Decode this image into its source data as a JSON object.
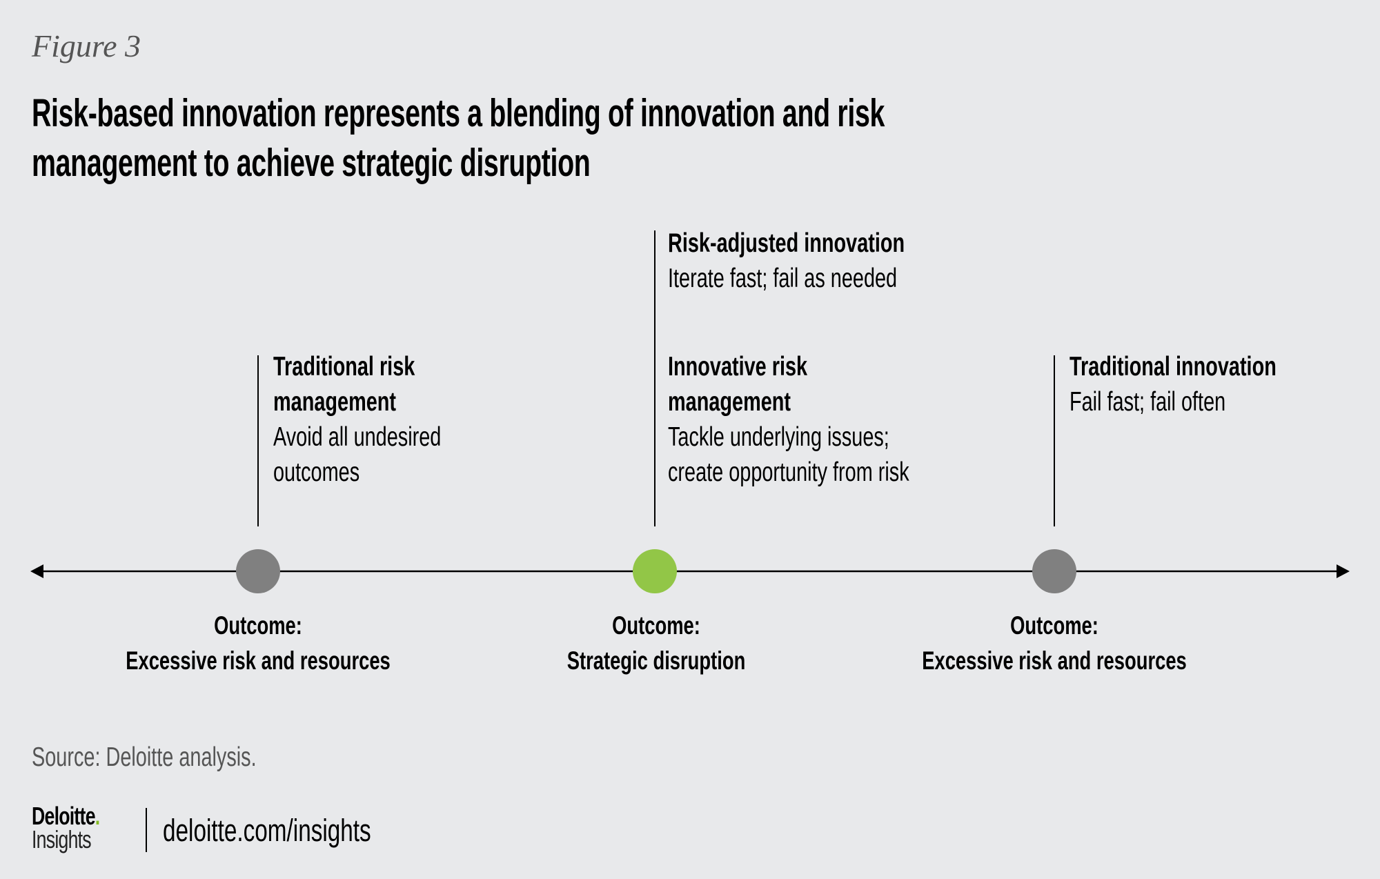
{
  "figure_label": "Figure 3",
  "title_lines": [
    "Risk-based innovation represents a blending of innovation and risk",
    "management to achieve strategic disruption"
  ],
  "approaches": [
    {
      "heading_lines": [
        "Traditional risk",
        "management"
      ],
      "desc_lines": [
        "Avoid all undesired",
        "outcomes"
      ],
      "outcome_label": "Outcome:",
      "outcome": "Excessive risk and resources",
      "color": "#808080"
    },
    {
      "heading_lines": [
        "Innovative risk",
        "management"
      ],
      "desc_lines": [
        "Tackle underlying issues;",
        "create opportunity from risk"
      ],
      "outcome_label": "Outcome:",
      "outcome": "Strategic disruption",
      "color": "#92c647",
      "extra": {
        "heading": "Risk-adjusted innovation",
        "desc": "Iterate fast; fail as needed"
      }
    },
    {
      "heading_lines": [
        "Traditional innovation"
      ],
      "desc_lines": [
        "Fail fast; fail often"
      ],
      "outcome_label": "Outcome:",
      "outcome": "Excessive risk and resources",
      "color": "#808080"
    }
  ],
  "source": "Source: Deloitte analysis.",
  "logo": {
    "brand": "Deloitte",
    "dot": ".",
    "sub": "Insights"
  },
  "url": "deloitte.com/insights",
  "colors": {
    "background": "#e8e9eb",
    "accent": "#92c647",
    "neutral": "#808080"
  }
}
